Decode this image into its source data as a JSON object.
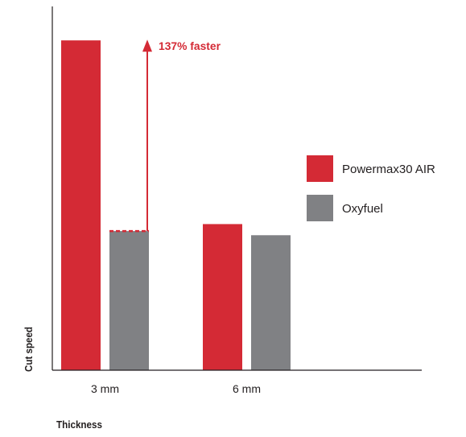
{
  "chart_data": {
    "type": "bar",
    "title": "",
    "xlabel": "Thickness",
    "ylabel": "Cut speed",
    "categories": [
      "3 mm",
      "6 mm"
    ],
    "series": [
      {
        "name": "Powermax30 AIR",
        "values": [
          2.37,
          1.05
        ],
        "color": "#d42a35"
      },
      {
        "name": "Oxyfuel",
        "values": [
          1.0,
          0.97
        ],
        "color": "#808184"
      }
    ],
    "ylim": [
      0,
      2.4
    ],
    "y_ticks_shown": false,
    "grid": false,
    "legend_position": "right",
    "annotation": {
      "text": "137% faster",
      "category_index": 0,
      "from_value": 1.0,
      "to_value": 2.37,
      "color": "#d42a35"
    }
  }
}
